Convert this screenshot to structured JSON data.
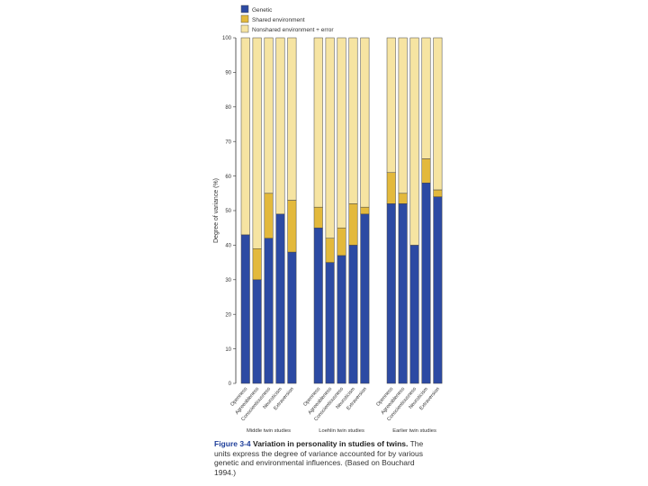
{
  "chart_data": {
    "type": "bar",
    "stacked": true,
    "ylabel": "Degree of variance (%)",
    "ylim": [
      0,
      100
    ],
    "yticks": [
      0,
      10,
      20,
      30,
      40,
      50,
      60,
      70,
      80,
      90,
      100
    ],
    "grid": false,
    "legend_position": "top-left",
    "series": [
      {
        "name": "Genetic",
        "color": "#2c4aa3"
      },
      {
        "name": "Shared environment",
        "color": "#e3b93c"
      },
      {
        "name": "Nonshared environment + error",
        "color": "#f6e4a2"
      }
    ],
    "groups": [
      {
        "label": "Middle twin studies",
        "bars": [
          {
            "category": "Openness",
            "genetic": 43,
            "shared": 0,
            "nonshared": 57
          },
          {
            "category": "Agreeableness",
            "genetic": 30,
            "shared": 9,
            "nonshared": 61
          },
          {
            "category": "Conscientiousness",
            "genetic": 42,
            "shared": 13,
            "nonshared": 45
          },
          {
            "category": "Neuroticism",
            "genetic": 49,
            "shared": 0,
            "nonshared": 51
          },
          {
            "category": "Extraversion",
            "genetic": 38,
            "shared": 15,
            "nonshared": 47
          }
        ]
      },
      {
        "label": "Loehlin twin studies",
        "bars": [
          {
            "category": "Openness",
            "genetic": 45,
            "shared": 6,
            "nonshared": 49
          },
          {
            "category": "Agreeableness",
            "genetic": 35,
            "shared": 7,
            "nonshared": 58
          },
          {
            "category": "Conscientiousness",
            "genetic": 37,
            "shared": 8,
            "nonshared": 55
          },
          {
            "category": "Neuroticism",
            "genetic": 40,
            "shared": 12,
            "nonshared": 48
          },
          {
            "category": "Extraversion",
            "genetic": 49,
            "shared": 2,
            "nonshared": 49
          }
        ]
      },
      {
        "label": "Earlier twin studies",
        "bars": [
          {
            "category": "Openness",
            "genetic": 52,
            "shared": 9,
            "nonshared": 39
          },
          {
            "category": "Agreeableness",
            "genetic": 52,
            "shared": 3,
            "nonshared": 45
          },
          {
            "category": "Conscientiousness",
            "genetic": 40,
            "shared": 0,
            "nonshared": 60
          },
          {
            "category": "Neuroticism",
            "genetic": 58,
            "shared": 7,
            "nonshared": 35
          },
          {
            "category": "Extraversion",
            "genetic": 54,
            "shared": 2,
            "nonshared": 44
          }
        ]
      }
    ]
  },
  "caption": {
    "label": "Figure 3-4",
    "title": "Variation in personality in studies of twins.",
    "body": "The units express the degree of variance accounted for by various genetic and environmental influences. (Based on Bouchard 1994.)"
  }
}
